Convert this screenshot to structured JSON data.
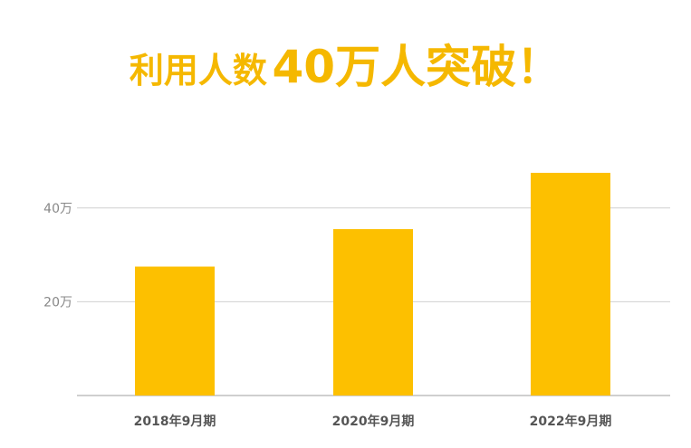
{
  "title": {
    "part1": "利用人数",
    "part2": "40万人突破！"
  },
  "chart_data": {
    "type": "bar",
    "categories": [
      "2018年9月期",
      "2020年9月期",
      "2022年9月期"
    ],
    "values": [
      27.5,
      35.5,
      47.5
    ],
    "ylim": [
      0,
      48
    ],
    "yticks": [
      {
        "value": 20,
        "label": "20万"
      },
      {
        "value": 40,
        "label": "40万"
      }
    ],
    "grid": true,
    "bar_color": "#fdc000",
    "grid_color": "#d0d0d0",
    "title": "",
    "xlabel": "",
    "ylabel": ""
  }
}
